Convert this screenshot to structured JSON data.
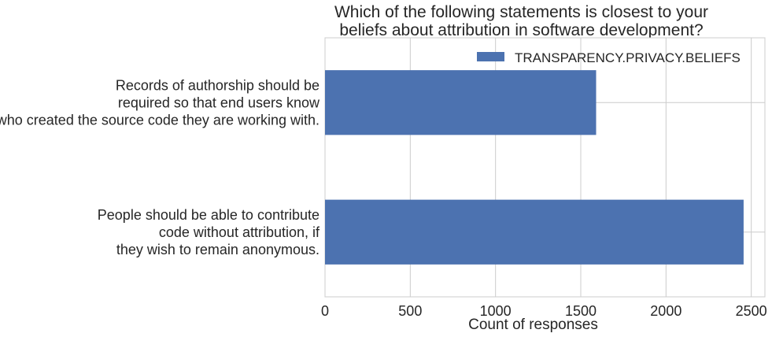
{
  "chart_data": {
    "type": "bar",
    "orientation": "horizontal",
    "title": "Which of the following statements is closest to your\nbeliefs about attribution in software development?",
    "xlabel": "Count of responses",
    "ylabel": "",
    "xlim": [
      0,
      2580
    ],
    "xticks": [
      0,
      500,
      1000,
      1500,
      2000,
      2500
    ],
    "grid": true,
    "legend_position": "top-right",
    "categories": [
      "Records of authorship should be\nrequired so that end users know\nwho created the source code they are working with.",
      "People should be able to contribute\ncode without attribution, if\nthey wish to remain anonymous."
    ],
    "series": [
      {
        "name": "TRANSPARENCY.PRIVACY.BELIEFS",
        "values": [
          1590,
          2455
        ],
        "color": "#4c72b0"
      }
    ]
  }
}
